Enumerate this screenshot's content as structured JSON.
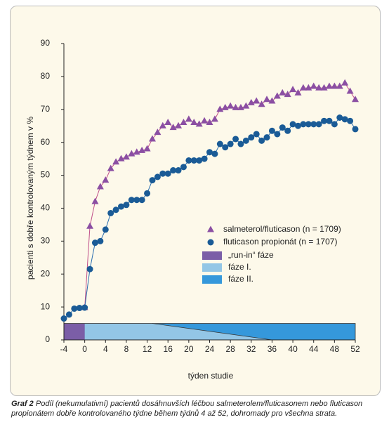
{
  "chart_data": {
    "type": "line",
    "y_label": "pacienti s dobře kontrolovaným týdnem v %",
    "x_label": "týden studie",
    "x": [
      -4,
      -3,
      -2,
      -1,
      0,
      1,
      2,
      3,
      4,
      5,
      6,
      7,
      8,
      9,
      10,
      11,
      12,
      13,
      14,
      15,
      16,
      17,
      18,
      19,
      20,
      21,
      22,
      23,
      24,
      25,
      26,
      27,
      28,
      29,
      30,
      31,
      32,
      33,
      34,
      35,
      36,
      37,
      38,
      39,
      40,
      41,
      42,
      43,
      44,
      45,
      46,
      47,
      48,
      49,
      50,
      51,
      52
    ],
    "series": [
      {
        "name": "salmeterol/fluticason (n = 1709)",
        "color": "#8b4fa3",
        "line_color": "#c0508a",
        "marker": "triangle",
        "values": [
          null,
          null,
          null,
          null,
          9.8,
          34.5,
          42,
          46.5,
          48.5,
          52,
          54,
          55,
          55.5,
          56.5,
          57,
          57.5,
          58,
          61,
          63,
          65,
          66,
          64.5,
          65,
          66,
          67,
          66,
          65.5,
          66.5,
          66,
          67,
          70,
          70.5,
          71,
          70.5,
          70.5,
          71,
          72,
          72.5,
          71.5,
          73,
          72.5,
          74,
          75,
          74.5,
          76,
          75,
          76.5,
          76.5,
          77,
          76.5,
          76.5,
          77,
          77,
          77,
          78,
          75.5,
          73
        ]
      },
      {
        "name": "fluticason propionát (n = 1707)",
        "color": "#1a5b96",
        "line_color": "#2a6db0",
        "marker": "circle",
        "values": [
          6.5,
          7.7,
          9.5,
          9.7,
          9.8,
          21.5,
          29.5,
          30,
          33.5,
          38.5,
          39.5,
          40.5,
          41,
          42.5,
          42.5,
          42.5,
          44.5,
          48.5,
          49.5,
          50.5,
          50.5,
          51.5,
          51.5,
          52.5,
          54.5,
          54.5,
          54.5,
          55,
          57,
          56.5,
          59.5,
          58.5,
          59.5,
          61,
          59.5,
          60.5,
          61.5,
          62.5,
          60.5,
          61.5,
          63.5,
          62.5,
          64.5,
          63.5,
          65.5,
          65,
          65.5,
          65.5,
          65.5,
          65.5,
          66.5,
          66.5,
          65.5,
          67.5,
          67,
          66.5,
          64
        ]
      }
    ],
    "phases": [
      {
        "name": "„run-in“ fáze",
        "color": "#7b5ea7",
        "x": [
          -4,
          0
        ]
      },
      {
        "name": "fáze I.",
        "color": "#93c6e6",
        "x": [
          0,
          13,
          36
        ]
      },
      {
        "name": "fáze II.",
        "color": "#3598db",
        "x": [
          0,
          52
        ]
      }
    ],
    "phase_height": 5,
    "xlim": [
      -4,
      52
    ],
    "xticks": [
      -4,
      0,
      4,
      8,
      12,
      16,
      20,
      24,
      28,
      32,
      36,
      40,
      44,
      48,
      52
    ],
    "ylim": [
      0,
      90
    ],
    "yticks": [
      0,
      10,
      20,
      30,
      40,
      50,
      60,
      70,
      80,
      90
    ],
    "grid": false,
    "caption_label": "Graf 2",
    "caption": "Podíl (nekumulativní) pacientů dosáhnuvších léčbou salmeterolem/fluticasonem nebo fluticason propionátem dobře kontrolovaného týdne během týdnů 4 až 52, dohromady pro všechna strata."
  }
}
